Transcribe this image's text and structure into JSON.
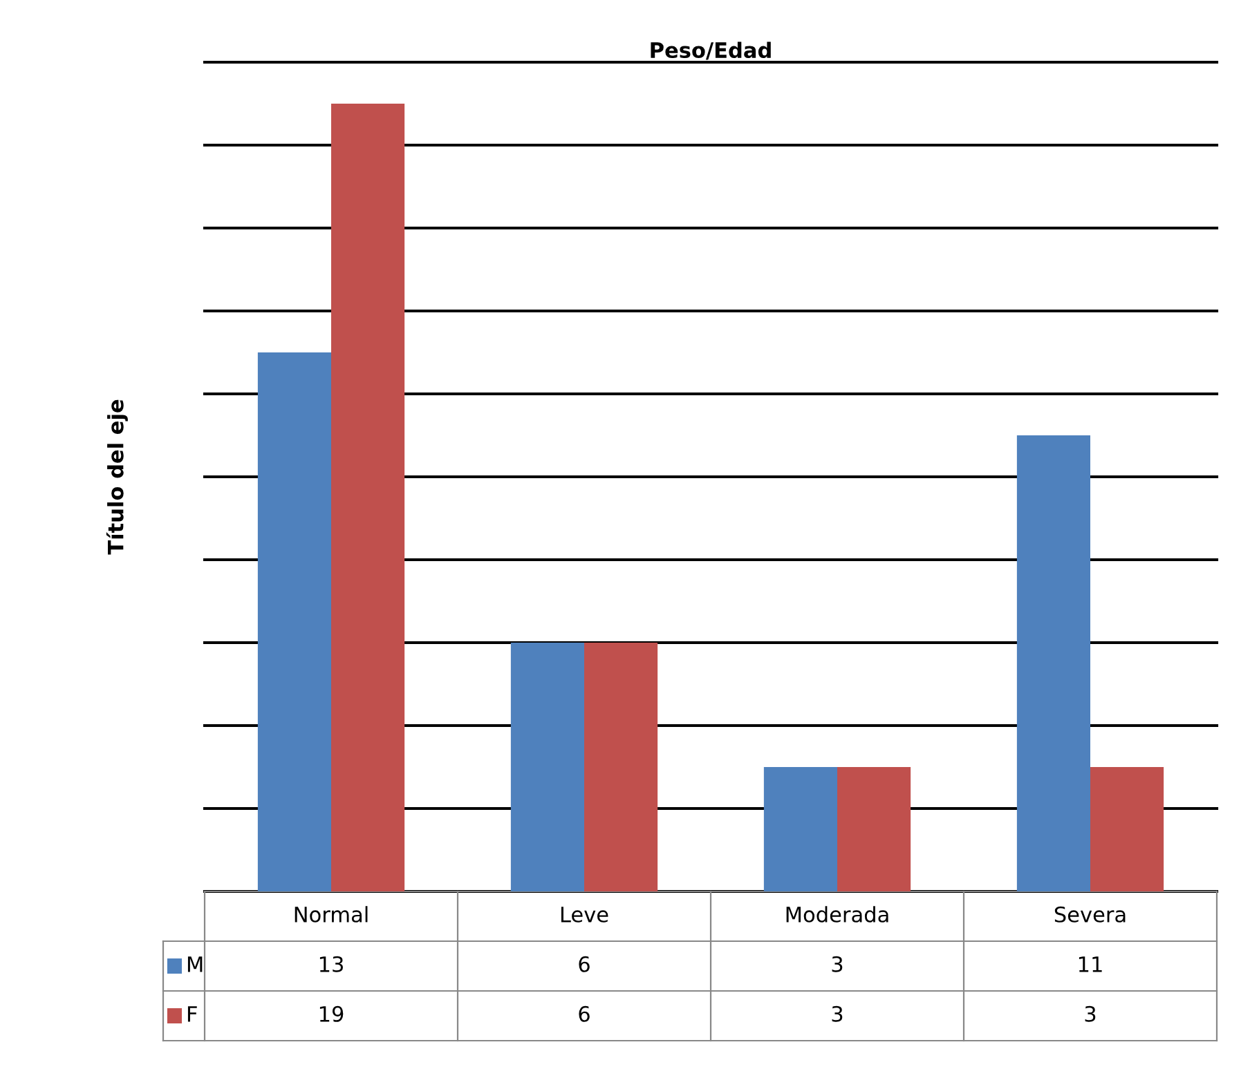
{
  "chart_data": {
    "type": "bar",
    "title": "Peso/Edad",
    "ylabel": "Título del eje",
    "categories": [
      "Normal",
      "Leve",
      "Moderada",
      "Severa"
    ],
    "series": [
      {
        "name": "M",
        "color": "#4f81bd",
        "values": [
          13,
          6,
          3,
          11
        ]
      },
      {
        "name": "F",
        "color": "#c0504d",
        "values": [
          19,
          6,
          3,
          3
        ]
      }
    ],
    "ylim": [
      0,
      20
    ],
    "yticks": [
      {
        "value": 0,
        "label": null
      },
      {
        "value": 2,
        "label": null
      },
      {
        "value": 4,
        "label": null
      },
      {
        "value": 6,
        "label": null
      },
      {
        "value": 8,
        "label": null
      },
      {
        "value": 10,
        "label": null
      },
      {
        "value": 12,
        "label": null
      },
      {
        "value": 14,
        "label": null
      },
      {
        "value": 16,
        "label": null
      },
      {
        "value": 18,
        "label": null
      },
      {
        "value": 20,
        "label": null
      }
    ],
    "grid": "y",
    "legend": "bottom left",
    "tick_labels": "x",
    "data_labels": true
  }
}
